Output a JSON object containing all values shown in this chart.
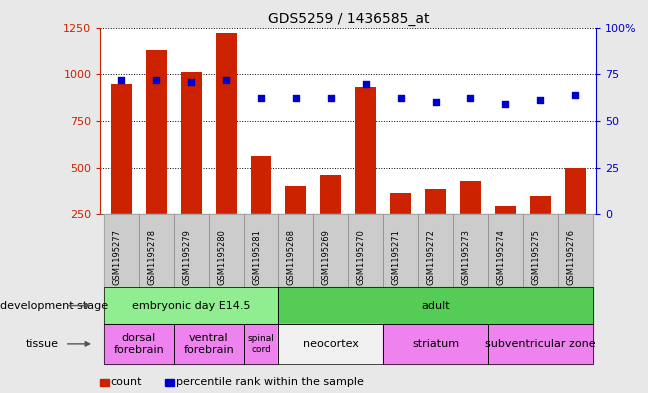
{
  "title": "GDS5259 / 1436585_at",
  "samples": [
    "GSM1195277",
    "GSM1195278",
    "GSM1195279",
    "GSM1195280",
    "GSM1195281",
    "GSM1195268",
    "GSM1195269",
    "GSM1195270",
    "GSM1195271",
    "GSM1195272",
    "GSM1195273",
    "GSM1195274",
    "GSM1195275",
    "GSM1195276"
  ],
  "counts": [
    950,
    1130,
    1010,
    1220,
    560,
    400,
    460,
    930,
    365,
    385,
    430,
    295,
    345,
    495
  ],
  "percentile_ranks": [
    72,
    72,
    71,
    72,
    62,
    62,
    62,
    70,
    62,
    60,
    62,
    59,
    61,
    64
  ],
  "bar_color": "#cc2200",
  "dot_color": "#0000cc",
  "left_axis_color": "#cc2200",
  "right_axis_color": "#0000cc",
  "ylim_left": [
    250,
    1250
  ],
  "ylim_right": [
    0,
    100
  ],
  "left_yticks": [
    250,
    500,
    750,
    1000,
    1250
  ],
  "right_yticks": [
    0,
    25,
    50,
    75,
    100
  ],
  "right_yticklabels": [
    "0",
    "25",
    "50",
    "75",
    "100%"
  ],
  "background_color": "#e8e8e8",
  "plot_bg": "#ffffff",
  "development_stage_groups": [
    {
      "label": "embryonic day E14.5",
      "start": 0,
      "end": 4,
      "color": "#90ee90"
    },
    {
      "label": "adult",
      "start": 5,
      "end": 13,
      "color": "#55cc55"
    }
  ],
  "tissue_groups": [
    {
      "label": "dorsal\nforebrain",
      "start": 0,
      "end": 1,
      "color": "#ee82ee"
    },
    {
      "label": "ventral\nforebrain",
      "start": 2,
      "end": 3,
      "color": "#ee82ee"
    },
    {
      "label": "spinal\ncord",
      "start": 4,
      "end": 4,
      "color": "#ee82ee"
    },
    {
      "label": "neocortex",
      "start": 5,
      "end": 7,
      "color": "#f0f0f0"
    },
    {
      "label": "striatum",
      "start": 8,
      "end": 10,
      "color": "#ee82ee"
    },
    {
      "label": "subventricular zone",
      "start": 11,
      "end": 13,
      "color": "#ee82ee"
    }
  ],
  "legend_count_label": "count",
  "legend_pct_label": "percentile rank within the sample",
  "dev_stage_label": "development stage",
  "tissue_label": "tissue",
  "bar_width": 0.6,
  "xlim": [
    -0.6,
    13.6
  ]
}
